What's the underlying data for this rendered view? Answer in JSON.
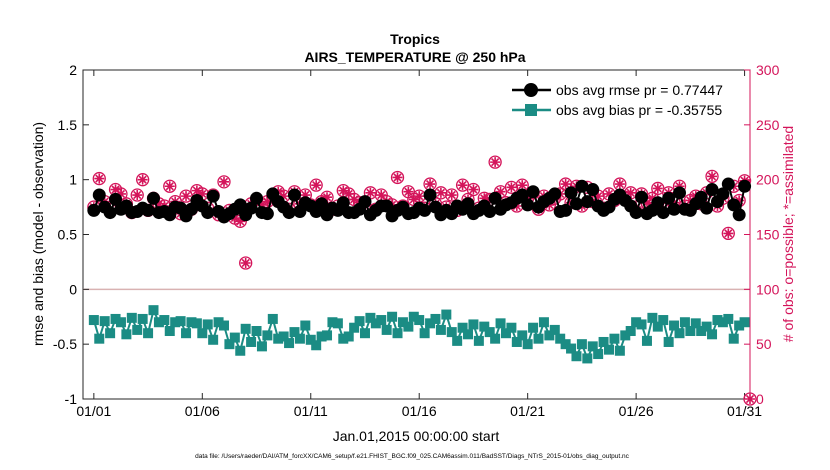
{
  "chart_data": {
    "type": "line",
    "title": "Tropics",
    "subtitle": "AIRS_TEMPERATURE @ 250 hPa",
    "xlabel": "Jan.01,2015 00:00:00 start",
    "ylabel": "rmse and bias (model - observation)",
    "y2label": "# of obs: o=possible; *=assimilated",
    "footnote": "data file: /Users/raeder/DAI/ATM_forcXX/CAM6_setup/f.e21.FHIST_BGC.f09_025.CAM6assim.011/BadSST/Diags_NTrS_2015-01/obs_diag_output.nc",
    "xlim": [
      0.5,
      31.25
    ],
    "ylim": [
      -1,
      2
    ],
    "y2lim": [
      0,
      300
    ],
    "x_ticks": [
      1,
      6,
      11,
      16,
      21,
      26,
      31
    ],
    "x_tick_labels": [
      "01/01",
      "01/06",
      "01/11",
      "01/16",
      "01/21",
      "01/26",
      "01/31"
    ],
    "y_ticks": [
      -1,
      -0.5,
      0,
      0.5,
      1,
      1.5,
      2
    ],
    "y_tick_labels": [
      "-1",
      "-0.5",
      "0",
      "0.5",
      "1",
      "1.5",
      "2"
    ],
    "y2_ticks": [
      0,
      50,
      100,
      150,
      200,
      250,
      300
    ],
    "y2_tick_labels": [
      "0",
      "50",
      "100",
      "150",
      "200",
      "250",
      "300"
    ],
    "zero_line": 0,
    "legend_position": "top-right",
    "colors": {
      "rmse": "#000000",
      "bias": "#1b8c84",
      "obs": "#d4145a",
      "zero": "#d9b2b2"
    },
    "series": [
      {
        "name": "obs avg rmse pr = 0.77447",
        "axis": "left",
        "x": [
          1,
          1.25,
          1.5,
          1.75,
          2,
          2.25,
          2.5,
          2.75,
          3,
          3.25,
          3.5,
          3.75,
          4,
          4.25,
          4.5,
          4.75,
          5,
          5.25,
          5.5,
          5.75,
          6,
          6.25,
          6.5,
          6.75,
          7,
          7.25,
          7.5,
          7.75,
          8,
          8.25,
          8.5,
          8.75,
          9,
          9.25,
          9.5,
          9.75,
          10,
          10.25,
          10.5,
          10.75,
          11,
          11.25,
          11.5,
          11.75,
          12,
          12.25,
          12.5,
          12.75,
          13,
          13.25,
          13.5,
          13.75,
          14,
          14.25,
          14.5,
          14.75,
          15,
          15.25,
          15.5,
          15.75,
          16,
          16.25,
          16.5,
          16.75,
          17,
          17.25,
          17.5,
          17.75,
          18,
          18.25,
          18.5,
          18.75,
          19,
          19.25,
          19.5,
          19.75,
          20,
          20.25,
          20.5,
          20.75,
          21,
          21.25,
          21.5,
          21.75,
          22,
          22.25,
          22.5,
          22.75,
          23,
          23.25,
          23.5,
          23.75,
          24,
          24.25,
          24.5,
          24.75,
          25,
          25.25,
          25.5,
          25.75,
          26,
          26.25,
          26.5,
          26.75,
          27,
          27.25,
          27.5,
          27.75,
          28,
          28.25,
          28.5,
          28.75,
          29,
          29.25,
          29.5,
          29.75,
          30,
          30.25,
          30.5,
          30.75,
          31
        ],
        "values": [
          0.72,
          0.86,
          0.75,
          0.7,
          0.82,
          0.73,
          0.76,
          0.7,
          0.71,
          0.74,
          0.72,
          0.83,
          0.7,
          0.71,
          0.68,
          0.75,
          0.74,
          0.67,
          0.73,
          0.81,
          0.76,
          0.7,
          0.85,
          0.71,
          0.66,
          0.69,
          0.73,
          0.77,
          0.68,
          0.74,
          0.83,
          0.7,
          0.69,
          0.87,
          0.8,
          0.75,
          0.7,
          0.86,
          0.71,
          0.79,
          0.76,
          0.71,
          0.78,
          0.68,
          0.74,
          0.72,
          0.79,
          0.7,
          0.7,
          0.73,
          0.8,
          0.68,
          0.72,
          0.76,
          0.76,
          0.67,
          0.72,
          0.75,
          0.69,
          0.7,
          0.74,
          0.72,
          0.86,
          0.75,
          0.68,
          0.72,
          0.69,
          0.76,
          0.73,
          0.78,
          0.69,
          0.72,
          0.76,
          0.71,
          0.83,
          0.73,
          0.77,
          0.79,
          0.83,
          0.86,
          0.77,
          0.89,
          0.75,
          0.8,
          0.83,
          0.87,
          0.71,
          0.72,
          0.88,
          0.78,
          0.94,
          0.8,
          0.91,
          0.76,
          0.72,
          0.75,
          0.82,
          0.86,
          0.81,
          0.76,
          0.7,
          0.84,
          0.69,
          0.72,
          0.79,
          0.7,
          0.83,
          0.73,
          0.88,
          0.73,
          0.72,
          0.78,
          0.84,
          0.74,
          0.91,
          0.8,
          0.87,
          0.96,
          0.77,
          0.68,
          0.94
        ]
      },
      {
        "name": "obs avg bias pr = -0.35755",
        "axis": "left",
        "x": [
          1,
          1.25,
          1.5,
          1.75,
          2,
          2.25,
          2.5,
          2.75,
          3,
          3.25,
          3.5,
          3.75,
          4,
          4.25,
          4.5,
          4.75,
          5,
          5.25,
          5.5,
          5.75,
          6,
          6.25,
          6.5,
          6.75,
          7,
          7.25,
          7.5,
          7.75,
          8,
          8.25,
          8.5,
          8.75,
          9,
          9.25,
          9.5,
          9.75,
          10,
          10.25,
          10.5,
          10.75,
          11,
          11.25,
          11.5,
          11.75,
          12,
          12.25,
          12.5,
          12.75,
          13,
          13.25,
          13.5,
          13.75,
          14,
          14.25,
          14.5,
          14.75,
          15,
          15.25,
          15.5,
          15.75,
          16,
          16.25,
          16.5,
          16.75,
          17,
          17.25,
          17.5,
          17.75,
          18,
          18.25,
          18.5,
          18.75,
          19,
          19.25,
          19.5,
          19.75,
          20,
          20.25,
          20.5,
          20.75,
          21,
          21.25,
          21.5,
          21.75,
          22,
          22.25,
          22.5,
          22.75,
          23,
          23.25,
          23.5,
          23.75,
          24,
          24.25,
          24.5,
          24.75,
          25,
          25.25,
          25.5,
          25.75,
          26,
          26.25,
          26.5,
          26.75,
          27,
          27.25,
          27.5,
          27.75,
          28,
          28.25,
          28.5,
          28.75,
          29,
          29.25,
          29.5,
          29.75,
          30,
          30.25,
          30.5,
          30.75,
          31
        ],
        "values": [
          -0.28,
          -0.45,
          -0.29,
          -0.4,
          -0.27,
          -0.3,
          -0.41,
          -0.26,
          -0.37,
          -0.27,
          -0.4,
          -0.19,
          -0.3,
          -0.28,
          -0.38,
          -0.3,
          -0.29,
          -0.4,
          -0.3,
          -0.31,
          -0.4,
          -0.32,
          -0.46,
          -0.3,
          -0.33,
          -0.5,
          -0.44,
          -0.56,
          -0.36,
          -0.48,
          -0.38,
          -0.52,
          -0.42,
          -0.27,
          -0.45,
          -0.43,
          -0.49,
          -0.39,
          -0.45,
          -0.33,
          -0.46,
          -0.51,
          -0.43,
          -0.42,
          -0.3,
          -0.31,
          -0.45,
          -0.43,
          -0.35,
          -0.29,
          -0.4,
          -0.26,
          -0.31,
          -0.28,
          -0.37,
          -0.25,
          -0.4,
          -0.3,
          -0.34,
          -0.25,
          -0.28,
          -0.4,
          -0.31,
          -0.27,
          -0.37,
          -0.23,
          -0.39,
          -0.47,
          -0.35,
          -0.41,
          -0.32,
          -0.47,
          -0.34,
          -0.39,
          -0.45,
          -0.31,
          -0.4,
          -0.35,
          -0.48,
          -0.42,
          -0.5,
          -0.35,
          -0.45,
          -0.3,
          -0.42,
          -0.37,
          -0.45,
          -0.5,
          -0.54,
          -0.61,
          -0.5,
          -0.63,
          -0.52,
          -0.59,
          -0.48,
          -0.55,
          -0.45,
          -0.56,
          -0.42,
          -0.38,
          -0.3,
          -0.32,
          -0.47,
          -0.26,
          -0.34,
          -0.28,
          -0.48,
          -0.33,
          -0.4,
          -0.3,
          -0.38,
          -0.31,
          -0.38,
          -0.34,
          -0.41,
          -0.28,
          -0.3,
          -0.27,
          -0.45,
          -0.33,
          -0.3
        ]
      },
      {
        "name": "obs possible",
        "axis": "right",
        "marker": "circle",
        "x": [
          1,
          1.25,
          1.5,
          1.75,
          2,
          2.25,
          2.5,
          2.75,
          3,
          3.25,
          3.5,
          3.75,
          4,
          4.25,
          4.5,
          4.75,
          5,
          5.25,
          5.5,
          5.75,
          6,
          6.25,
          6.5,
          6.75,
          7,
          7.25,
          7.5,
          7.75,
          8,
          8.25,
          8.5,
          8.75,
          9,
          9.25,
          9.5,
          9.75,
          10,
          10.25,
          10.5,
          10.75,
          11,
          11.25,
          11.5,
          11.75,
          12,
          12.25,
          12.5,
          12.75,
          13,
          13.25,
          13.5,
          13.75,
          14,
          14.25,
          14.5,
          14.75,
          15,
          15.25,
          15.5,
          15.75,
          16,
          16.25,
          16.5,
          16.75,
          17,
          17.25,
          17.5,
          17.75,
          18,
          18.25,
          18.5,
          18.75,
          19,
          19.25,
          19.5,
          19.75,
          20,
          20.25,
          20.5,
          20.75,
          21,
          21.25,
          21.5,
          21.75,
          22,
          22.25,
          22.5,
          22.75,
          23,
          23.25,
          23.5,
          23.75,
          24,
          24.25,
          24.5,
          24.75,
          25,
          25.25,
          25.5,
          25.75,
          26,
          26.25,
          26.5,
          26.75,
          27,
          27.25,
          27.5,
          27.75,
          28,
          28.25,
          28.5,
          28.75,
          29,
          29.25,
          29.5,
          29.75,
          30,
          30.25,
          30.5,
          30.75,
          31,
          31.25
        ],
        "values": [
          175,
          201,
          180,
          173,
          191,
          187,
          178,
          170,
          186,
          200,
          172,
          183,
          178,
          176,
          194,
          180,
          169,
          185,
          173,
          190,
          187,
          174,
          186,
          168,
          198,
          172,
          165,
          162,
          124,
          178,
          182,
          177,
          180,
          184,
          189,
          185,
          173,
          189,
          178,
          186,
          177,
          195,
          180,
          184,
          173,
          176,
          190,
          187,
          182,
          179,
          176,
          188,
          173,
          186,
          180,
          177,
          202,
          176,
          189,
          182,
          185,
          174,
          196,
          178,
          188,
          175,
          186,
          172,
          195,
          182,
          191,
          174,
          183,
          182,
          216,
          189,
          179,
          193,
          176,
          195,
          183,
          188,
          173,
          185,
          177,
          183,
          187,
          196,
          179,
          194,
          176,
          193,
          180,
          185,
          174,
          187,
          181,
          196,
          184,
          188,
          175,
          187,
          179,
          183,
          192,
          173,
          188,
          179,
          194,
          176,
          181,
          185,
          178,
          188,
          203,
          176,
          183,
          151,
          194,
          181,
          199,
          0
        ]
      },
      {
        "name": "obs assimilated",
        "axis": "right",
        "marker": "star",
        "x": [
          1,
          1.25,
          1.5,
          1.75,
          2,
          2.25,
          2.5,
          2.75,
          3,
          3.25,
          3.5,
          3.75,
          4,
          4.25,
          4.5,
          4.75,
          5,
          5.25,
          5.5,
          5.75,
          6,
          6.25,
          6.5,
          6.75,
          7,
          7.25,
          7.5,
          7.75,
          8,
          8.25,
          8.5,
          8.75,
          9,
          9.25,
          9.5,
          9.75,
          10,
          10.25,
          10.5,
          10.75,
          11,
          11.25,
          11.5,
          11.75,
          12,
          12.25,
          12.5,
          12.75,
          13,
          13.25,
          13.5,
          13.75,
          14,
          14.25,
          14.5,
          14.75,
          15,
          15.25,
          15.5,
          15.75,
          16,
          16.25,
          16.5,
          16.75,
          17,
          17.25,
          17.5,
          17.75,
          18,
          18.25,
          18.5,
          18.75,
          19,
          19.25,
          19.5,
          19.75,
          20,
          20.25,
          20.5,
          20.75,
          21,
          21.25,
          21.5,
          21.75,
          22,
          22.25,
          22.5,
          22.75,
          23,
          23.25,
          23.5,
          23.75,
          24,
          24.25,
          24.5,
          24.75,
          25,
          25.25,
          25.5,
          25.75,
          26,
          26.25,
          26.5,
          26.75,
          27,
          27.25,
          27.5,
          27.75,
          28,
          28.25,
          28.5,
          28.75,
          29,
          29.25,
          29.5,
          29.75,
          30,
          30.25,
          30.5,
          30.75,
          31,
          31.25
        ],
        "values": [
          175,
          201,
          180,
          173,
          191,
          187,
          178,
          170,
          186,
          200,
          172,
          183,
          178,
          176,
          194,
          180,
          169,
          185,
          173,
          190,
          187,
          174,
          186,
          168,
          198,
          172,
          165,
          162,
          124,
          178,
          182,
          177,
          180,
          184,
          189,
          185,
          173,
          189,
          178,
          186,
          177,
          195,
          180,
          184,
          173,
          176,
          190,
          187,
          182,
          179,
          176,
          188,
          173,
          186,
          180,
          177,
          202,
          176,
          189,
          182,
          185,
          174,
          196,
          178,
          188,
          175,
          186,
          172,
          195,
          182,
          191,
          174,
          183,
          182,
          216,
          189,
          179,
          193,
          176,
          195,
          183,
          188,
          173,
          185,
          177,
          183,
          187,
          196,
          179,
          194,
          176,
          193,
          180,
          185,
          174,
          187,
          181,
          196,
          184,
          188,
          175,
          187,
          179,
          183,
          192,
          173,
          188,
          179,
          194,
          176,
          181,
          185,
          178,
          188,
          203,
          176,
          183,
          151,
          194,
          181,
          199,
          0
        ]
      }
    ]
  }
}
